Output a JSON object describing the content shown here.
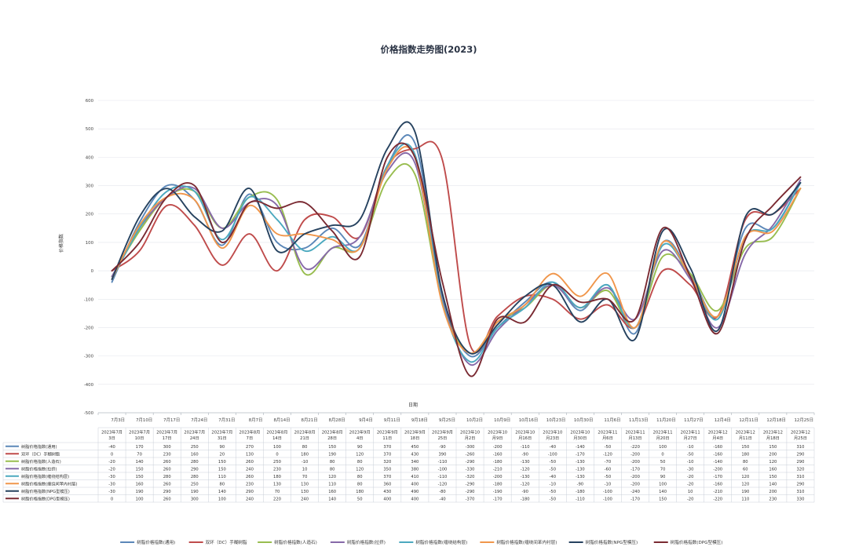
{
  "chart_data": {
    "type": "line",
    "title": "价格指数走势图(2023)",
    "xlabel": "日期",
    "ylabel": "价格指数",
    "ylim": [
      -500,
      600
    ],
    "yticks": [
      -500,
      -400,
      -300,
      -200,
      -100,
      0,
      100,
      200,
      300,
      400,
      500,
      600
    ],
    "grid": true,
    "legend": "bottom",
    "categories": [
      "7月3日",
      "7月10日",
      "7月17日",
      "7月24日",
      "7月31日",
      "8月7日",
      "8月14日",
      "8月21日",
      "8月28日",
      "9月4日",
      "9月11日",
      "9月18日",
      "9月25日",
      "10月2日",
      "10月9日",
      "10月16日",
      "10月23日",
      "10月30日",
      "11月6日",
      "11月13日",
      "11月20日",
      "11月27日",
      "12月4日",
      "12月11日",
      "12月18日",
      "12月25日"
    ],
    "table_dates": [
      [
        "2023年7月",
        "3日"
      ],
      [
        "2023年7月",
        "10日"
      ],
      [
        "2023年7月",
        "17日"
      ],
      [
        "2023年7月",
        "24日"
      ],
      [
        "2023年7月",
        "31日"
      ],
      [
        "2023年8月",
        "7日"
      ],
      [
        "2023年8月",
        "14日"
      ],
      [
        "2023年8月",
        "21日"
      ],
      [
        "2023年8月",
        "28日"
      ],
      [
        "2023年9月",
        "4日"
      ],
      [
        "2023年9月",
        "11日"
      ],
      [
        "2023年9月",
        "18日"
      ],
      [
        "2023年9月",
        "25日"
      ],
      [
        "2023年10",
        "月2日"
      ],
      [
        "2023年10",
        "月9日"
      ],
      [
        "2023年10",
        "月16日"
      ],
      [
        "2023年10",
        "月23日"
      ],
      [
        "2023年10",
        "月30日"
      ],
      [
        "2023年11",
        "月6日"
      ],
      [
        "2023年11",
        "月13日"
      ],
      [
        "2023年11",
        "月20日"
      ],
      [
        "2023年11",
        "月27日"
      ],
      [
        "2023年12",
        "月4日"
      ],
      [
        "2023年12",
        "月11日"
      ],
      [
        "2023年12",
        "月18日"
      ],
      [
        "2023年12",
        "月25日"
      ]
    ],
    "series": [
      {
        "name": "树脂价格指数(通用)",
        "color": "#5b87b8",
        "values": [
          -40,
          170,
          300,
          250,
          90,
          270,
          100,
          80,
          150,
          90,
          370,
          450,
          -90,
          -300,
          -200,
          -110,
          -40,
          -140,
          -50,
          -220,
          100,
          -10,
          -160,
          150,
          150,
          310
        ]
      },
      {
        "name": "双环（DC）手糊树脂",
        "color": "#bf4b4b",
        "values": [
          0,
          70,
          230,
          160,
          20,
          130,
          0,
          180,
          190,
          120,
          370,
          430,
          390,
          -260,
          -160,
          -90,
          -100,
          -170,
          -120,
          -200,
          0,
          -50,
          -160,
          180,
          200,
          290
        ]
      },
      {
        "name": "树脂价格指数(人造石)",
        "color": "#98bd4f",
        "values": [
          -20,
          140,
          260,
          280,
          150,
          260,
          250,
          -10,
          80,
          80,
          320,
          340,
          -110,
          -290,
          -180,
          -130,
          -50,
          -130,
          -70,
          -200,
          50,
          -10,
          -140,
          80,
          120,
          290
        ]
      },
      {
        "name": "树脂价格指数(拉挤)",
        "color": "#8669a8",
        "values": [
          -20,
          150,
          260,
          290,
          150,
          240,
          230,
          10,
          80,
          120,
          350,
          380,
          -100,
          -330,
          -210,
          -120,
          -50,
          -130,
          -60,
          -170,
          70,
          -30,
          -200,
          60,
          160,
          320
        ]
      },
      {
        "name": "树脂价格指数(缠绕结构层)",
        "color": "#4ba9bf",
        "values": [
          -30,
          150,
          280,
          280,
          110,
          260,
          180,
          70,
          120,
          80,
          370,
          410,
          -110,
          -320,
          -200,
          -130,
          -40,
          -130,
          -50,
          -200,
          90,
          -20,
          -170,
          120,
          150,
          310
        ]
      },
      {
        "name": "树脂价格指数(缠绕间苯内衬层)",
        "color": "#f0964b",
        "values": [
          -30,
          160,
          260,
          250,
          80,
          230,
          130,
          130,
          110,
          80,
          360,
          400,
          -120,
          -290,
          -180,
          -120,
          -10,
          -90,
          -10,
          -200,
          100,
          -20,
          -160,
          120,
          140,
          290
        ]
      },
      {
        "name": "树脂价格指数(NPG型模压)",
        "color": "#26425f",
        "values": [
          -30,
          190,
          290,
          190,
          140,
          290,
          70,
          130,
          160,
          180,
          430,
          490,
          -80,
          -290,
          -190,
          -90,
          -50,
          -180,
          -100,
          -240,
          140,
          10,
          -210,
          190,
          200,
          310
        ]
      },
      {
        "name": "树脂价格指数(DPG型模压)",
        "color": "#7a2a32",
        "values": [
          0,
          100,
          260,
          300,
          100,
          240,
          220,
          240,
          140,
          50,
          400,
          400,
          -40,
          -370,
          -170,
          -180,
          -50,
          -110,
          -100,
          -170,
          150,
          -20,
          -220,
          110,
          230,
          330
        ]
      }
    ]
  }
}
